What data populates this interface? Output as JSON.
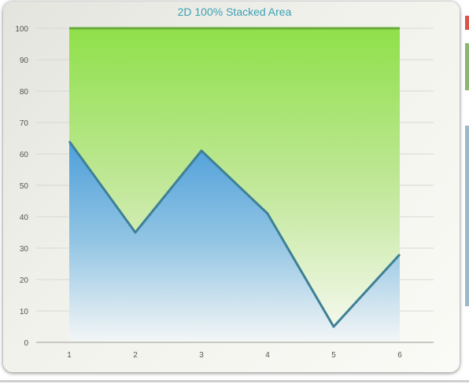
{
  "chart_data": {
    "type": "area",
    "stacking": "100%",
    "title": "2D 100% Stacked Area",
    "categories": [
      "1",
      "2",
      "3",
      "4",
      "5",
      "6"
    ],
    "series": [
      {
        "values": [
          64,
          35,
          61,
          41,
          5,
          28
        ],
        "color": "#5aa9dc"
      },
      {
        "values": [
          36,
          65,
          39,
          59,
          95,
          72
        ],
        "color": "#8fe04a"
      }
    ],
    "ylim": [
      0,
      100
    ],
    "yticks": [
      "0",
      "10",
      "20",
      "30",
      "40",
      "50",
      "60",
      "70",
      "80",
      "90",
      "100"
    ],
    "grid": true,
    "title_color": "#3aa0b5",
    "series_line_color": "#3e8096",
    "top_line_color": "#6aaa3a"
  }
}
